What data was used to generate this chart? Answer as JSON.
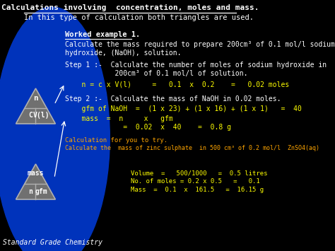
{
  "bg_color": "#000000",
  "title": "Calculations involving  concentration, moles and mass.",
  "subtitle": "In this type of calculation both triangles are used.",
  "worked_example": "Worked example 1.",
  "line1": "Calculate the mass required to prepare 200cm³ of 0.1 mol/l sodium",
  "line2": "hydroxide, (NaOH), solution.",
  "step1_title": "Step 1 :-  Calculate the number of moles of sodium hydroxide in",
  "step1_sub": "            200cm³ of 0.1 mol/l of solution.",
  "step1_eq": "    n = c x V(l)     =   0.1  x  0.2    =   0.02 moles",
  "step2_title": "Step 2 :-  Calculate the mass of NaOH in 0.02 moles.",
  "step2_gfm": "    gfm of NaOH  =  (1 x 23) + (1 x 16) + (1 x 1)   =  40",
  "step2_mass1": "    mass  =  n     x   gfm",
  "step2_mass2": "              =  0.02  x  40    =  0.8 g",
  "calc_try": "Calculation for you to try.",
  "calc_try2": "Calculate the  mass of zinc sulphate  in 500 cm³ of 0.2 mol/l  ZnSO4(aq)",
  "vol_line": "Volume  =   500/1000   =  0.5 litres",
  "moles_line": "No. of moles = 0.2 x 0.5   =   0.1",
  "mass_line": "Mass  =  0.1  x  161.5   =  16.15 g",
  "footer": "Standard Grade Chemistry",
  "tri1_label_top": "n",
  "tri1_label_bl": "C",
  "tri1_label_br": "V(l)",
  "tri2_label_top": "mass",
  "tri2_label_bl": "n",
  "tri2_label_br": "gfm",
  "yellow_color": "#ffff00",
  "orange_color": "#ffa500",
  "title_color": "#ffffff",
  "text_color": "#ffffff"
}
